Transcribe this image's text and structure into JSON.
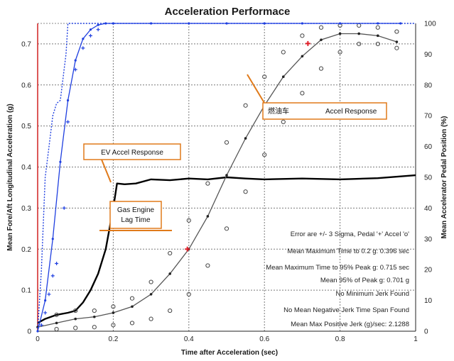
{
  "chart_data": {
    "type": "line",
    "title": "Acceleration Performace",
    "xlabel": "Time after Acceleration (sec)",
    "ylabel": "Mean Fore/Aft Longitudinal Acceleration (g)",
    "y2label": "Mean Accelerator Pedal Position (%)",
    "xlim": [
      0,
      1.0
    ],
    "ylim": [
      0,
      0.75
    ],
    "y2lim": [
      0,
      100
    ],
    "x_ticks": [
      "0",
      "0.2",
      "0.4",
      "0.6",
      "0.8",
      "1"
    ],
    "y_ticks": [
      "0",
      "0.1",
      "0.2",
      "0.3",
      "0.4",
      "0.5",
      "0.6",
      "0.7"
    ],
    "y2_ticks": [
      "0",
      "10",
      "20",
      "30",
      "40",
      "50",
      "60",
      "70",
      "80",
      "90",
      "100"
    ],
    "grid": true,
    "series": [
      {
        "name": "EV Accel Response",
        "axis": "left",
        "style": "thick-black",
        "x": [
          0,
          0.02,
          0.05,
          0.08,
          0.1,
          0.12,
          0.14,
          0.16,
          0.18,
          0.2,
          0.21,
          0.23,
          0.26,
          0.3,
          0.35,
          0.4,
          0.45,
          0.5,
          0.55,
          0.6,
          0.7,
          0.8,
          0.9,
          1.0
        ],
        "y": [
          0.02,
          0.03,
          0.04,
          0.045,
          0.05,
          0.07,
          0.1,
          0.14,
          0.2,
          0.3,
          0.36,
          0.358,
          0.36,
          0.37,
          0.368,
          0.372,
          0.37,
          0.375,
          0.372,
          0.37,
          0.372,
          0.37,
          0.373,
          0.38
        ]
      },
      {
        "name": "Accel Response",
        "axis": "left",
        "style": "gray-line-dots",
        "x": [
          0,
          0.05,
          0.1,
          0.15,
          0.2,
          0.25,
          0.3,
          0.35,
          0.4,
          0.45,
          0.5,
          0.55,
          0.6,
          0.65,
          0.7,
          0.75,
          0.8,
          0.85,
          0.9,
          0.95
        ],
        "y": [
          0.01,
          0.02,
          0.03,
          0.035,
          0.045,
          0.06,
          0.09,
          0.14,
          0.2,
          0.28,
          0.38,
          0.47,
          0.55,
          0.62,
          0.67,
          0.71,
          0.725,
          0.725,
          0.72,
          0.705
        ]
      },
      {
        "name": "Upper 3-Sigma",
        "axis": "left",
        "style": "open-circles",
        "x": [
          0.05,
          0.1,
          0.15,
          0.2,
          0.25,
          0.3,
          0.35,
          0.4,
          0.45,
          0.5,
          0.55,
          0.6,
          0.65,
          0.7,
          0.75,
          0.8,
          0.85,
          0.9,
          0.95
        ],
        "y": [
          0.04,
          0.05,
          0.05,
          0.06,
          0.08,
          0.12,
          0.19,
          0.27,
          0.36,
          0.46,
          0.55,
          0.62,
          0.68,
          0.72,
          0.74,
          0.745,
          0.745,
          0.74,
          0.73
        ]
      },
      {
        "name": "Lower 3-Sigma",
        "axis": "left",
        "style": "open-circles",
        "x": [
          0.05,
          0.1,
          0.15,
          0.2,
          0.25,
          0.3,
          0.35,
          0.4,
          0.45,
          0.5,
          0.55,
          0.6,
          0.65,
          0.7,
          0.75,
          0.8,
          0.85,
          0.9,
          0.95
        ],
        "y": [
          0.005,
          0.008,
          0.01,
          0.015,
          0.02,
          0.03,
          0.05,
          0.09,
          0.16,
          0.25,
          0.34,
          0.43,
          0.51,
          0.58,
          0.64,
          0.68,
          0.7,
          0.7,
          0.69
        ]
      },
      {
        "name": "Pedal Position (blue)",
        "axis": "right",
        "style": "blue-line-dots",
        "x": [
          0,
          0.02,
          0.04,
          0.06,
          0.08,
          0.1,
          0.12,
          0.14,
          0.16,
          0.18,
          0.2,
          0.3,
          0.4,
          0.5,
          0.6,
          0.7,
          0.8,
          0.9,
          0.96
        ],
        "y": [
          0,
          10,
          30,
          55,
          75,
          88,
          95,
          98,
          99.5,
          100,
          100,
          100,
          100,
          100,
          100,
          100,
          100,
          100,
          100
        ]
      },
      {
        "name": "Pedal Position (dotted)",
        "axis": "right",
        "style": "blue-dotted",
        "x": [
          0,
          0.01,
          0.02,
          0.03,
          0.04,
          0.05,
          0.06,
          0.065,
          0.07,
          0.075,
          0.08,
          1.0
        ],
        "y": [
          0,
          20,
          50,
          60,
          70,
          74,
          75,
          80,
          85,
          90,
          100,
          100
        ]
      },
      {
        "name": "Pedal 3-Sigma",
        "axis": "right",
        "style": "blue-plus",
        "x": [
          0.01,
          0.02,
          0.03,
          0.04,
          0.05,
          0.07,
          0.08,
          0.1,
          0.12,
          0.14,
          0.16
        ],
        "y": [
          2,
          6,
          12,
          18,
          22,
          40,
          68,
          85,
          92,
          96,
          98
        ]
      }
    ],
    "markers": [
      {
        "label": "Mean Maximum Time to 0.2 g",
        "x": 0.396,
        "y": 0.2
      },
      {
        "label": "Mean 95% of Peak g",
        "x": 0.715,
        "y": 0.701
      }
    ],
    "annotations": {
      "callouts": [
        {
          "id": "ev",
          "text": "EV Accel Response"
        },
        {
          "id": "lag",
          "line1": "Gas Engine",
          "line2": "Lag Time"
        },
        {
          "id": "gas",
          "cn": "燃油车",
          "text": "Accel Response"
        }
      ],
      "notes": [
        "Error are +/- 3 Sigma, Pedal '+' Accel 'o'",
        "Mean Maximum Time to 0.2 g: 0.396 sec",
        "Mean Maximum Time to 95% Peak g: 0.715 sec",
        "Mean 95% of Peak g: 0.701 g",
        "No Minimum Jerk Found",
        "No Mean Negative Jerk Time Span Found",
        "Mean Max Positive Jerk (g)/sec: 2.1288"
      ]
    },
    "colors": {
      "ev": "#000000",
      "gas": "#555555",
      "sigma": "#444444",
      "pedal": "#1f3fe0",
      "marker": "#e0202a",
      "callout": "#e07a1a",
      "left_axis": "#d02020"
    }
  }
}
